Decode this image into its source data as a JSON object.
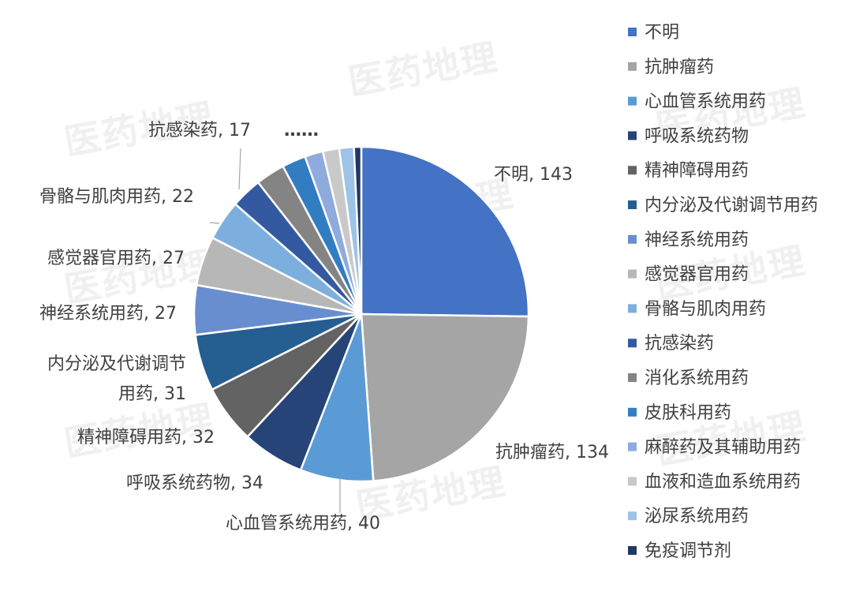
{
  "watermark": "医药地理",
  "chart_data": {
    "type": "pie",
    "legend_position": "right",
    "categories": [
      "不明",
      "抗肿瘤药",
      "心血管系统用药",
      "呼吸系统药物",
      "精神障碍用药",
      "内分泌及代谢调节用药",
      "神经系统用药",
      "感觉器官用药",
      "骨骼与肌肉用药",
      "抗感染药",
      "消化系统用药",
      "皮肤科用药",
      "麻醉药及其辅助用药",
      "血液和造血系统用药",
      "泌尿系统用药",
      "免疫调节剂"
    ],
    "values": [
      143,
      134,
      40,
      34,
      32,
      31,
      27,
      27,
      22,
      17,
      16,
      13,
      10,
      9,
      8,
      4
    ],
    "colors": [
      "#4472C4",
      "#A5A5A5",
      "#5B9BD5",
      "#264478",
      "#636363",
      "#255E91",
      "#698ED0",
      "#B7B7B7",
      "#7CAFDD",
      "#335AA1",
      "#848484",
      "#327DC2",
      "#8FAADC",
      "#C9C9C9",
      "#9DC3E6",
      "#203864"
    ],
    "data_labels": [
      {
        "index": 0,
        "text": "不明, 143"
      },
      {
        "index": 1,
        "text": "抗肿瘤药, 134"
      },
      {
        "index": 2,
        "text": "心血管系统用药, 40"
      },
      {
        "index": 3,
        "text": "呼吸系统药物, 34"
      },
      {
        "index": 4,
        "text": "精神障碍用药, 32"
      },
      {
        "index": 5,
        "lines": [
          "内分泌及代谢调节",
          "用药, 31"
        ]
      },
      {
        "index": 6,
        "text": "神经系统用药, 27"
      },
      {
        "index": 7,
        "text": "感觉器官用药, 27"
      },
      {
        "index": 8,
        "text": "骨骼与肌肉用药, 22"
      },
      {
        "index": 9,
        "text": "抗感染药, 17"
      }
    ],
    "ellipsis_label": "……"
  }
}
